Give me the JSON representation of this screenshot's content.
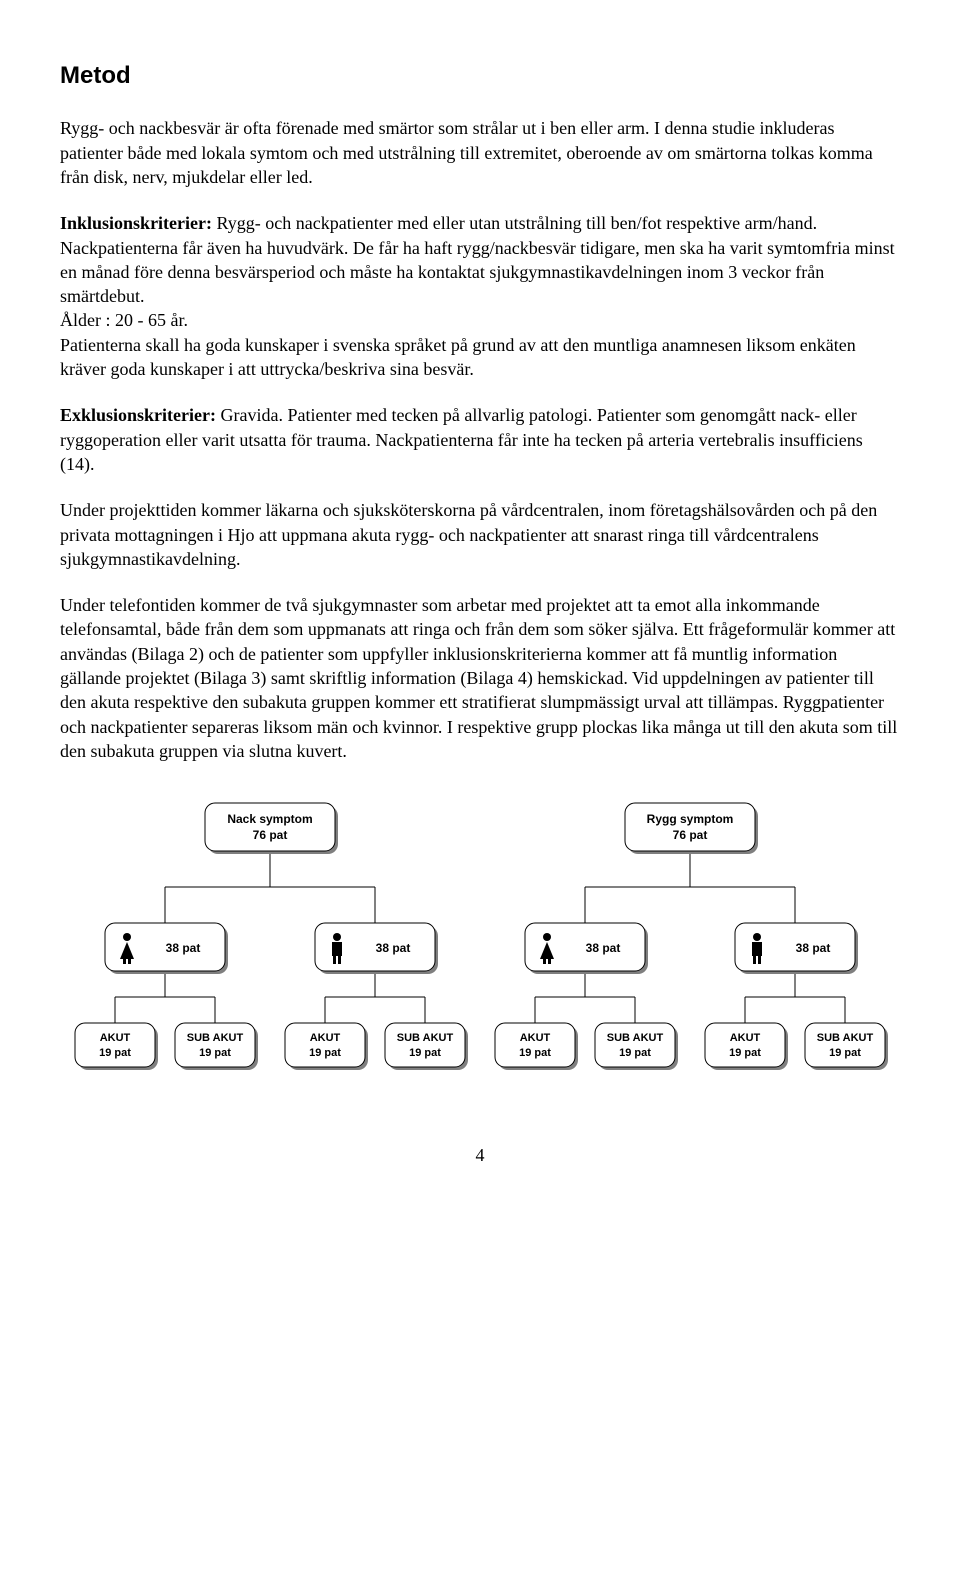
{
  "heading": "Metod",
  "paragraphs": {
    "p1": "Rygg- och nackbesvär är ofta förenade med smärtor som strålar ut i ben eller arm. I denna studie inkluderas patienter både med lokala symtom och med utstrålning till extremitet, oberoende av om smärtorna tolkas komma från disk, nerv, mjukdelar eller led.",
    "p2_bold": "Inklusionskriterier:",
    "p2_rest": " Rygg- och nackpatienter med eller utan utstrålning till ben/fot respektive arm/hand. Nackpatienterna får även ha huvudvärk. De får ha haft rygg/nackbesvär tidigare, men ska ha varit symtomfria minst en månad före denna besvärsperiod och måste ha kontaktat sjukgymnastikavdelningen inom 3 veckor från smärtdebut.",
    "p2_line2": "Ålder : 20 - 65 år.",
    "p2_line3": "Patienterna skall ha goda kunskaper i svenska språket på grund av att den muntliga anamnesen liksom enkäten kräver goda kunskaper i att uttrycka/beskriva sina besvär.",
    "p3_bold": "Exklusionskriterier:",
    "p3_rest": " Gravida. Patienter med tecken på allvarlig patologi. Patienter som genomgått nack- eller ryggoperation eller varit utsatta för trauma. Nackpatienterna får inte ha tecken på arteria vertebralis insufficiens (14).",
    "p4": "Under projekttiden kommer läkarna och sjuksköterskorna på vårdcentralen, inom företagshälsovården och på den privata mottagningen i Hjo att uppmana akuta rygg- och nackpatienter att snarast ringa till vårdcentralens sjukgymnastikavdelning.",
    "p5": "Under telefontiden kommer de två sjukgymnaster som arbetar med projektet att ta emot alla inkommande telefonsamtal, både från dem som uppmanats att ringa och från dem som söker själva. Ett frågeformulär kommer att användas (Bilaga 2) och de patienter som uppfyller inklusionskriterierna kommer att få muntlig information gällande projektet (Bilaga 3) samt skriftlig information (Bilaga 4) hemskickad. Vid uppdelningen av patienter till den akuta respektive den subakuta gruppen kommer ett stratifierat slumpmässigt urval att tillämpas. Ryggpatienter och nackpatienter separeras liksom män och kvinnor. I respektive grupp plockas lika många ut till den akuta som till den subakuta gruppen via slutna kuvert."
  },
  "diagram": {
    "type": "tree",
    "background_color": "#ffffff",
    "node_fill": "#ffffff",
    "node_stroke": "#000000",
    "shadow_color": "#7f7f7f",
    "edge_color": "#000000",
    "font_family": "Arial, Helvetica, sans-serif",
    "top_font_size": 12,
    "mid_font_size": 12,
    "leaf_font_size": 11,
    "border_radius": 10,
    "icon_female_color": "#000000",
    "icon_male_color": "#000000",
    "top_nodes": [
      {
        "line1": "Nack symptom",
        "line2": "76 pat"
      },
      {
        "line1": "Rygg symptom",
        "line2": "76 pat"
      }
    ],
    "mid_nodes": [
      {
        "icon": "female",
        "label": "38 pat"
      },
      {
        "icon": "male",
        "label": "38 pat"
      },
      {
        "icon": "female",
        "label": "38 pat"
      },
      {
        "icon": "male",
        "label": "38 pat"
      }
    ],
    "leaf_nodes": [
      {
        "line1": "AKUT",
        "line2": "19 pat"
      },
      {
        "line1": "SUB AKUT",
        "line2": "19 pat"
      },
      {
        "line1": "AKUT",
        "line2": "19 pat"
      },
      {
        "line1": "SUB AKUT",
        "line2": "19 pat"
      },
      {
        "line1": "AKUT",
        "line2": "19 pat"
      },
      {
        "line1": "SUB AKUT",
        "line2": "19 pat"
      },
      {
        "line1": "AKUT",
        "line2": "19 pat"
      },
      {
        "line1": "SUB AKUT",
        "line2": "19 pat"
      }
    ]
  },
  "page_number": "4"
}
